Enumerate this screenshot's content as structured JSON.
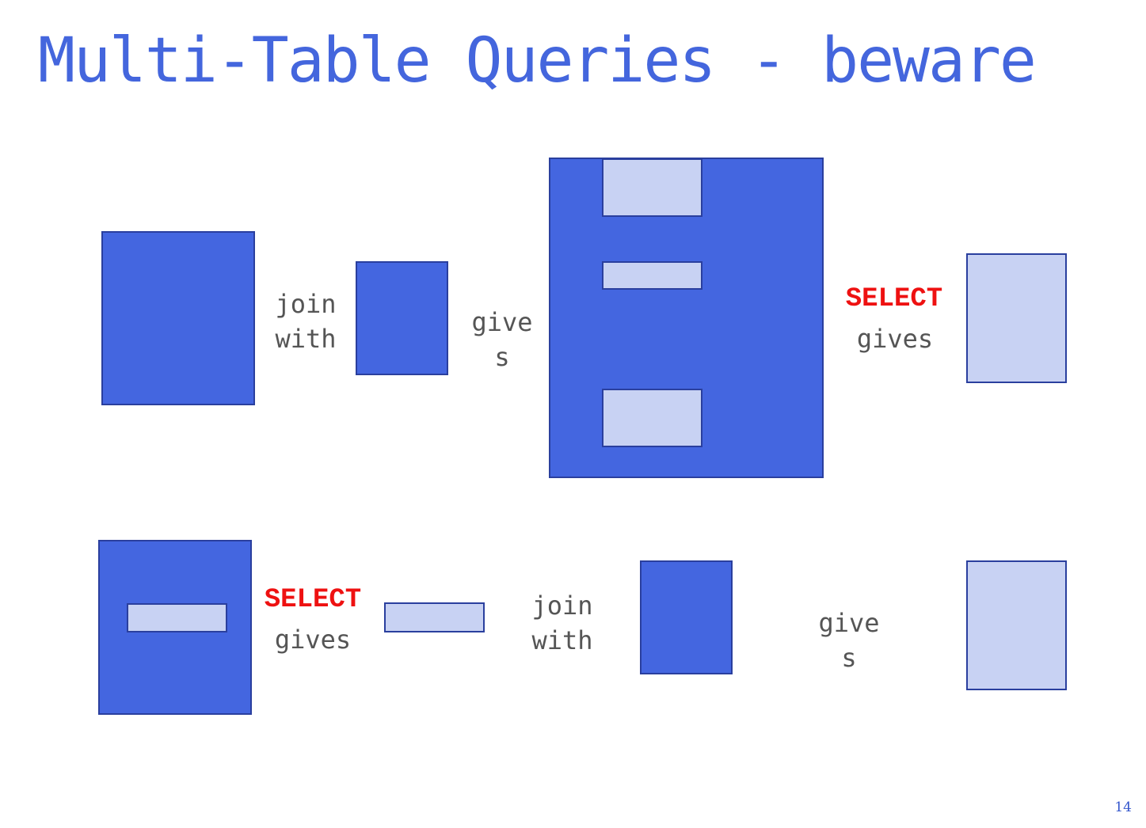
{
  "slide": {
    "title": "Multi-Table Queries - beware",
    "page_number": "14"
  },
  "row1": {
    "join_line1": "join",
    "join_line2": "with",
    "gives_line1": "give",
    "gives_line2": "s",
    "select_keyword": "SELECT",
    "select_gives": "gives"
  },
  "row2": {
    "select_keyword": "SELECT",
    "select_gives": "gives",
    "join_line1": "join",
    "join_line2": "with",
    "gives_line1": "give",
    "gives_line2": "s"
  },
  "colors": {
    "title": "#4466dd",
    "table_fill": "#4466e0",
    "selected_fill": "#c8d2f3",
    "border": "#2a3f9e",
    "keyword": "#ee1111",
    "label": "#555555"
  }
}
